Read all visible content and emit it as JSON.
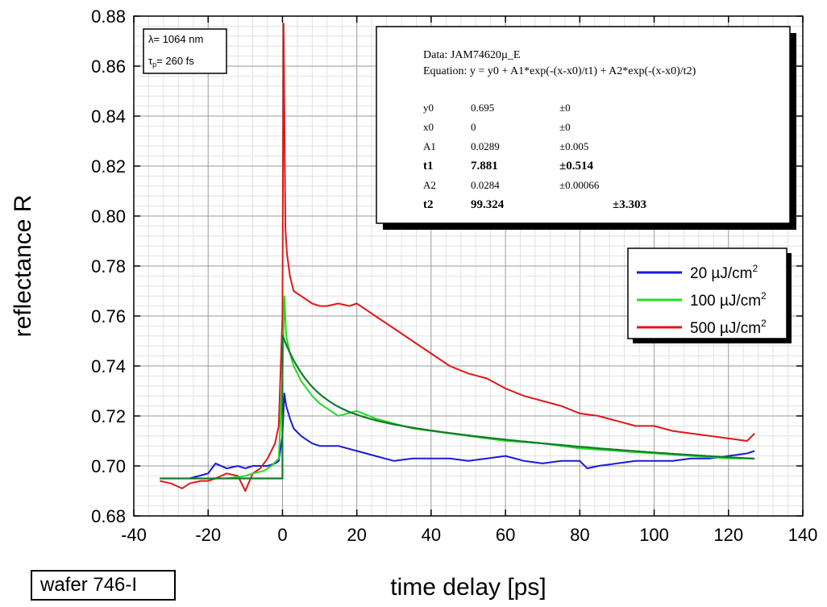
{
  "chart_data": {
    "type": "line",
    "xlabel": "time delay [ps]",
    "ylabel": "reflectance R",
    "xlim": [
      -40,
      140
    ],
    "ylim": [
      0.68,
      0.88
    ],
    "xticks": [
      "-40",
      "-20",
      "0",
      "20",
      "40",
      "60",
      "80",
      "100",
      "120",
      "140"
    ],
    "yticks": [
      "0.68",
      "0.70",
      "0.72",
      "0.74",
      "0.76",
      "0.78",
      "0.80",
      "0.82",
      "0.84",
      "0.86",
      "0.88"
    ],
    "grid": true,
    "legend_position": "right",
    "annotation_params": {
      "lambda": "λ= 1064 nm",
      "tau_label": "τ",
      "tau_sub": "p",
      "tau_value": "= 260 fs"
    },
    "fit_box": {
      "data_line": "Data: JAM74620µ_E",
      "equation_line": "Equation: y = y0 + A1*exp(-(x-x0)/t1) + A2*exp(-(x-x0)/t2)",
      "rows": [
        {
          "name": "y0",
          "value": "0.695",
          "error": "±0",
          "bold": false
        },
        {
          "name": "x0",
          "value": "0",
          "error": "±0",
          "bold": false
        },
        {
          "name": "A1",
          "value": "0.0289",
          "error": "±0.005",
          "bold": false
        },
        {
          "name": "t1",
          "value": "7.881",
          "error": "±0.514",
          "bold": true
        },
        {
          "name": "A2",
          "value": "0.0284",
          "error": "±0.00066",
          "bold": false
        },
        {
          "name": "t2",
          "value": "99.324",
          "error": "±3.303",
          "bold": true
        }
      ]
    },
    "series": [
      {
        "name": "20 µJ/cm²",
        "label_main": "20 µJ/cm",
        "label_sup": "2",
        "color": "#1a1adc",
        "x": [
          -33,
          -30,
          -25,
          -20,
          -18,
          -15,
          -12,
          -10,
          -8,
          -6,
          -4,
          -2,
          -1,
          0,
          0.5,
          1,
          2,
          3,
          5,
          8,
          10,
          15,
          20,
          25,
          30,
          35,
          40,
          45,
          50,
          55,
          60,
          65,
          70,
          75,
          80,
          82,
          85,
          90,
          95,
          100,
          105,
          110,
          115,
          120,
          125,
          127
        ],
        "y": [
          0.695,
          0.695,
          0.695,
          0.697,
          0.701,
          0.699,
          0.7,
          0.699,
          0.7,
          0.7,
          0.7,
          0.701,
          0.702,
          0.712,
          0.729,
          0.724,
          0.719,
          0.715,
          0.712,
          0.709,
          0.708,
          0.708,
          0.706,
          0.704,
          0.702,
          0.703,
          0.703,
          0.703,
          0.702,
          0.703,
          0.704,
          0.702,
          0.701,
          0.702,
          0.702,
          0.699,
          0.7,
          0.701,
          0.702,
          0.702,
          0.702,
          0.703,
          0.703,
          0.704,
          0.705,
          0.706
        ]
      },
      {
        "name": "100 µJ/cm²",
        "label_main": "100 µJ/cm",
        "label_sup": "2",
        "color": "#22dd22",
        "x": [
          -33,
          -30,
          -25,
          -20,
          -15,
          -10,
          -8,
          -5,
          -3,
          -1,
          0,
          0.5,
          1,
          2,
          3,
          5,
          8,
          10,
          15,
          20,
          25,
          30,
          35,
          40,
          50,
          60,
          70,
          80,
          90,
          100,
          110,
          120,
          127
        ],
        "y": [
          0.695,
          0.695,
          0.695,
          0.695,
          0.695,
          0.696,
          0.697,
          0.698,
          0.7,
          0.703,
          0.735,
          0.768,
          0.752,
          0.745,
          0.74,
          0.734,
          0.728,
          0.725,
          0.72,
          0.722,
          0.719,
          0.717,
          0.715,
          0.714,
          0.712,
          0.71,
          0.709,
          0.707,
          0.706,
          0.705,
          0.704,
          0.703,
          0.703
        ]
      },
      {
        "name": "500 µJ/cm²",
        "label_main": "500 µJ/cm",
        "label_sup": "2",
        "color": "#e01818",
        "x": [
          -33,
          -30,
          -27,
          -25,
          -22,
          -20,
          -18,
          -15,
          -12,
          -10,
          -8,
          -6,
          -4,
          -2,
          -1,
          0,
          0.3,
          0.8,
          1.2,
          2,
          3,
          5,
          8,
          10,
          12,
          15,
          18,
          20,
          22,
          25,
          30,
          35,
          40,
          45,
          50,
          55,
          60,
          65,
          70,
          75,
          80,
          85,
          90,
          95,
          100,
          105,
          110,
          115,
          120,
          125,
          127
        ],
        "y": [
          0.694,
          0.693,
          0.691,
          0.693,
          0.694,
          0.694,
          0.695,
          0.697,
          0.696,
          0.69,
          0.697,
          0.699,
          0.703,
          0.709,
          0.716,
          0.76,
          0.877,
          0.795,
          0.785,
          0.776,
          0.77,
          0.768,
          0.765,
          0.764,
          0.764,
          0.765,
          0.764,
          0.765,
          0.763,
          0.76,
          0.755,
          0.75,
          0.745,
          0.74,
          0.737,
          0.735,
          0.731,
          0.728,
          0.726,
          0.724,
          0.721,
          0.72,
          0.718,
          0.716,
          0.716,
          0.714,
          0.713,
          0.712,
          0.711,
          0.71,
          0.713
        ]
      }
    ],
    "fit_curve": {
      "color": "#137a2a",
      "y0": 0.695,
      "A1": 0.0289,
      "t1": 7.881,
      "A2": 0.0284,
      "t2": 99.324,
      "x0": 0,
      "x_start": -33,
      "x_end": 127
    }
  },
  "sample_label": "wafer 746-I"
}
